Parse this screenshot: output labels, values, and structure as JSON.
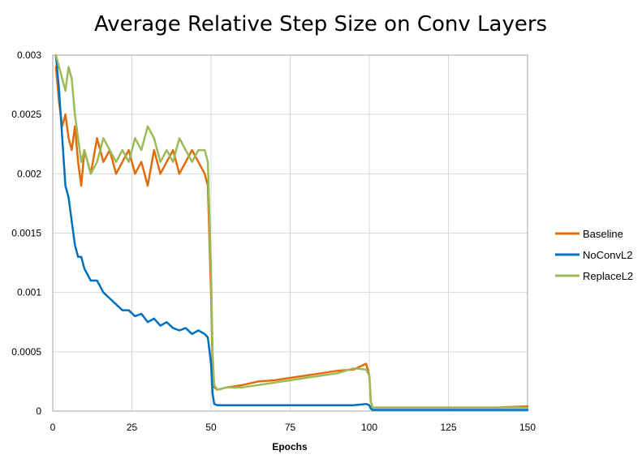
{
  "chart_data": {
    "type": "line",
    "title": "Average Relative Step Size on Conv Layers",
    "xlabel": "Epochs",
    "ylabel": "",
    "xlim": [
      0,
      150
    ],
    "ylim": [
      0,
      0.003
    ],
    "x_ticks": [
      0,
      25,
      50,
      75,
      100,
      125,
      150
    ],
    "x_tick_labels": [
      "0",
      "25",
      "50",
      "75",
      "100",
      "125",
      "150"
    ],
    "y_ticks": [
      0,
      0.0005,
      0.001,
      0.0015,
      0.002,
      0.0025,
      0.003
    ],
    "y_tick_labels": [
      "0",
      "0.0005",
      "0.001",
      "0.0015",
      "0.002",
      "0.0025",
      "0.003"
    ],
    "grid": "on",
    "legend_position": "right",
    "series": [
      {
        "name": "Baseline",
        "color": "#E36C09",
        "x": [
          1,
          2,
          3,
          4,
          5,
          6,
          7,
          8,
          9,
          10,
          12,
          14,
          16,
          18,
          20,
          22,
          24,
          26,
          28,
          30,
          32,
          34,
          36,
          38,
          40,
          42,
          44,
          46,
          48,
          49,
          50,
          50.5,
          51,
          52,
          55,
          60,
          65,
          70,
          75,
          80,
          85,
          90,
          95,
          99,
          100,
          100.5,
          101,
          102,
          110,
          120,
          130,
          140,
          150
        ],
        "y": [
          0.0029,
          0.0026,
          0.0024,
          0.0025,
          0.0023,
          0.0022,
          0.0024,
          0.0021,
          0.0019,
          0.0022,
          0.002,
          0.0023,
          0.0021,
          0.0022,
          0.002,
          0.0021,
          0.0022,
          0.002,
          0.0021,
          0.0019,
          0.0022,
          0.002,
          0.0021,
          0.0022,
          0.002,
          0.0021,
          0.0022,
          0.0021,
          0.002,
          0.0019,
          0.001,
          0.0004,
          0.0002,
          0.00018,
          0.0002,
          0.00022,
          0.00025,
          0.00026,
          0.00028,
          0.0003,
          0.00032,
          0.00034,
          0.00035,
          0.0004,
          0.0003,
          8e-05,
          3e-05,
          3e-05,
          3e-05,
          3e-05,
          3e-05,
          3e-05,
          4e-05
        ]
      },
      {
        "name": "NoConvL2",
        "color": "#0070C0",
        "x": [
          1,
          2,
          3,
          4,
          5,
          6,
          7,
          8,
          9,
          10,
          12,
          14,
          16,
          18,
          20,
          22,
          24,
          26,
          28,
          30,
          32,
          34,
          36,
          38,
          40,
          42,
          44,
          46,
          48,
          49,
          50,
          50.5,
          51,
          52,
          55,
          60,
          65,
          70,
          75,
          80,
          85,
          90,
          95,
          99,
          100,
          100.5,
          101,
          102,
          110,
          120,
          130,
          140,
          150
        ],
        "y": [
          0.003,
          0.0027,
          0.0023,
          0.0019,
          0.0018,
          0.0016,
          0.0014,
          0.0013,
          0.0013,
          0.0012,
          0.0011,
          0.0011,
          0.001,
          0.00095,
          0.0009,
          0.00085,
          0.00085,
          0.0008,
          0.00082,
          0.00075,
          0.00078,
          0.00072,
          0.00075,
          0.0007,
          0.00068,
          0.0007,
          0.00065,
          0.00068,
          0.00065,
          0.00062,
          0.0004,
          0.00015,
          6e-05,
          5e-05,
          5e-05,
          5e-05,
          5e-05,
          5e-05,
          5e-05,
          5e-05,
          5e-05,
          5e-05,
          5e-05,
          6e-05,
          5e-05,
          2e-05,
          1e-05,
          1e-05,
          1e-05,
          1e-05,
          1e-05,
          1e-05,
          1e-05
        ]
      },
      {
        "name": "ReplaceL2",
        "color": "#9BBB59",
        "x": [
          1,
          2,
          3,
          4,
          5,
          6,
          7,
          8,
          9,
          10,
          12,
          14,
          16,
          18,
          20,
          22,
          24,
          26,
          28,
          30,
          32,
          34,
          36,
          38,
          40,
          42,
          44,
          46,
          48,
          49,
          50,
          50.5,
          51,
          52,
          55,
          60,
          65,
          70,
          75,
          80,
          85,
          90,
          95,
          99,
          100,
          100.5,
          101,
          102,
          110,
          120,
          130,
          140,
          150
        ],
        "y": [
          0.003,
          0.0029,
          0.0028,
          0.0027,
          0.0029,
          0.0028,
          0.0025,
          0.0023,
          0.0021,
          0.0022,
          0.002,
          0.0021,
          0.0023,
          0.0022,
          0.0021,
          0.0022,
          0.0021,
          0.0023,
          0.0022,
          0.0024,
          0.0023,
          0.0021,
          0.0022,
          0.0021,
          0.0023,
          0.0022,
          0.0021,
          0.0022,
          0.0022,
          0.0021,
          0.0012,
          0.0005,
          0.00022,
          0.00018,
          0.0002,
          0.0002,
          0.00022,
          0.00024,
          0.00026,
          0.00028,
          0.0003,
          0.00032,
          0.00036,
          0.00035,
          0.0003,
          8e-05,
          3e-05,
          3e-05,
          3e-05,
          3e-05,
          3e-05,
          3e-05,
          3e-05
        ]
      }
    ]
  }
}
